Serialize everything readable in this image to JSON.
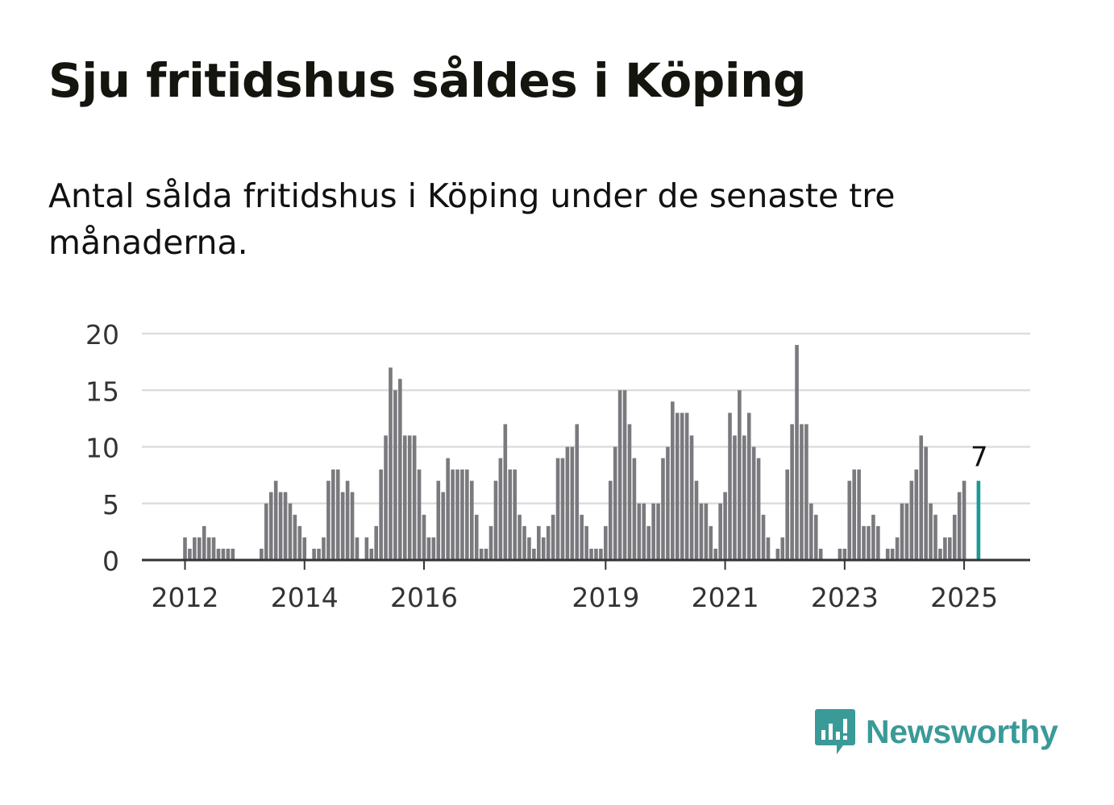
{
  "title": "Sju fritidshus såldes i Köping",
  "subtitle": "Antal sålda fritidshus i Köping under de senaste tre månaderna.",
  "brand": {
    "name": "Newsworthy",
    "color": "#3a9a98",
    "icon": "newsworthy-logo-icon"
  },
  "colors": {
    "bar": "#7a797e",
    "highlight": "#1a9a98",
    "grid": "#dddddd",
    "axis": "#333333"
  },
  "chart_data": {
    "type": "bar",
    "ylim": [
      0,
      20
    ],
    "yticks": [
      "0",
      "5",
      "10",
      "15",
      "20"
    ],
    "xticks": [
      {
        "label": "2012",
        "index": 0
      },
      {
        "label": "2014",
        "index": 25
      },
      {
        "label": "2016",
        "index": 50
      },
      {
        "label": "2019",
        "index": 88
      },
      {
        "label": "2021",
        "index": 113
      },
      {
        "label": "2023",
        "index": 138
      },
      {
        "label": "2025",
        "index": 163
      }
    ],
    "values": [
      2,
      1,
      2,
      2,
      3,
      2,
      2,
      1,
      1,
      1,
      1,
      0,
      0,
      0,
      0,
      0,
      1,
      5,
      6,
      7,
      6,
      6,
      5,
      4,
      3,
      2,
      0,
      1,
      1,
      2,
      7,
      8,
      8,
      6,
      7,
      6,
      2,
      0,
      2,
      1,
      3,
      8,
      11,
      17,
      15,
      16,
      11,
      11,
      11,
      8,
      4,
      2,
      2,
      7,
      6,
      9,
      8,
      8,
      8,
      8,
      7,
      4,
      1,
      1,
      3,
      7,
      9,
      12,
      8,
      8,
      4,
      3,
      2,
      1,
      3,
      2,
      3,
      4,
      9,
      9,
      10,
      10,
      12,
      4,
      3,
      1,
      1,
      1,
      3,
      7,
      10,
      15,
      15,
      12,
      9,
      5,
      5,
      3,
      5,
      5,
      9,
      10,
      14,
      13,
      13,
      13,
      11,
      7,
      5,
      5,
      3,
      1,
      5,
      6,
      13,
      11,
      15,
      11,
      13,
      10,
      9,
      4,
      2,
      0,
      1,
      2,
      8,
      12,
      19,
      12,
      12,
      5,
      4,
      1,
      0,
      0,
      0,
      1,
      1,
      7,
      8,
      8,
      3,
      3,
      4,
      3,
      0,
      1,
      1,
      2,
      5,
      5,
      7,
      8,
      11,
      10,
      5,
      4,
      1,
      2,
      2,
      4,
      6,
      7
    ],
    "highlight_index": 166,
    "highlight_label": "7"
  }
}
